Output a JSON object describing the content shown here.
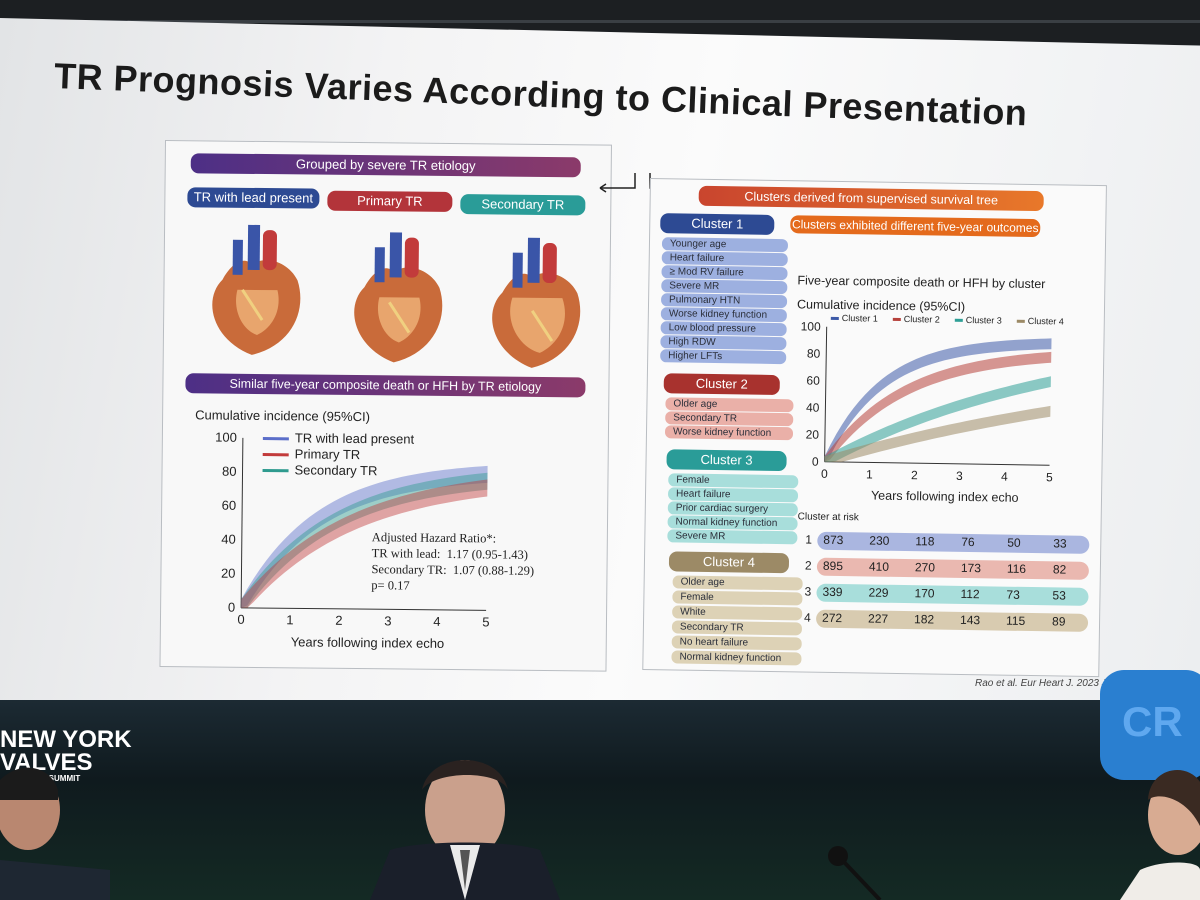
{
  "slide_title": "TR Prognosis Varies According to Clinical Presentation",
  "left_panel": {
    "grouped_header": "Grouped by severe TR etiology",
    "groups": [
      "TR with lead present",
      "Primary TR",
      "Secondary TR"
    ],
    "similar_header": "Similar five-year composite death or HFH by TR etiology",
    "chart": {
      "ylabel": "Cumulative incidence (95%CI)",
      "xlabel": "Years following index echo",
      "yticks": [
        "0",
        "20",
        "40",
        "60",
        "80",
        "100"
      ],
      "xticks": [
        "0",
        "1",
        "2",
        "3",
        "4",
        "5"
      ],
      "legend": [
        "TR with lead present",
        "Primary TR",
        "Secondary TR"
      ],
      "hr_title": "Adjusted Hazard Ratio*:",
      "hr_lines": [
        {
          "label": "TR with lead:",
          "value": "1.17 (0.95-1.43)"
        },
        {
          "label": "Secondary TR:",
          "value": "1.07 (0.88-1.29)"
        }
      ],
      "p_value": "p= 0.17"
    }
  },
  "right_panel": {
    "clusters_header": "Clusters derived from supervised survival tree",
    "clusters_subheader": "Clusters exhibited different five-year outcomes",
    "clusters": [
      {
        "name": "Cluster 1",
        "traits": [
          "Younger age",
          "Heart failure",
          "≥ Mod RV failure",
          "Severe MR",
          "Pulmonary HTN",
          "Worse kidney function",
          "Low blood pressure",
          "High RDW",
          "Higher LFTs"
        ]
      },
      {
        "name": "Cluster 2",
        "traits": [
          "Older age",
          "Secondary TR",
          "Worse kidney function"
        ]
      },
      {
        "name": "Cluster 3",
        "traits": [
          "Female",
          "Heart failure",
          "Prior cardiac surgery",
          "Normal kidney function",
          "Severe MR"
        ]
      },
      {
        "name": "Cluster 4",
        "traits": [
          "Older age",
          "Female",
          "White",
          "Secondary TR",
          "No heart failure",
          "Normal kidney function"
        ]
      }
    ],
    "chart": {
      "title": "Five-year composite death or HFH by cluster",
      "ylabel": "Cumulative incidence (95%CI)",
      "xlabel": "Years following index echo",
      "yticks": [
        "0",
        "20",
        "40",
        "60",
        "80",
        "100"
      ],
      "xticks": [
        "0",
        "1",
        "2",
        "3",
        "4",
        "5"
      ],
      "legend": [
        "Cluster 1",
        "Cluster 2",
        "Cluster 3",
        "Cluster 4"
      ]
    },
    "risk_table": {
      "title": "Cluster at risk",
      "rows": [
        {
          "id": "1",
          "values": [
            "873",
            "230",
            "118",
            "76",
            "50",
            "33"
          ]
        },
        {
          "id": "2",
          "values": [
            "895",
            "410",
            "270",
            "173",
            "116",
            "82"
          ]
        },
        {
          "id": "3",
          "values": [
            "339",
            "229",
            "170",
            "112",
            "73",
            "53"
          ]
        },
        {
          "id": "4",
          "values": [
            "272",
            "227",
            "182",
            "143",
            "115",
            "89"
          ]
        }
      ]
    }
  },
  "citation": "Rao et al. Eur Heart J. 2023 Jun",
  "event_logo": {
    "line1": "NEW YORK",
    "line2": "VALVES",
    "line3": "ART SUMMIT"
  },
  "corner_logo": "CR",
  "colors": {
    "lead": "#5b6ec9",
    "primary": "#c23b3b",
    "secondary": "#2f9b8f",
    "cluster1": "#3d5aa8",
    "cluster2": "#b6413b",
    "cluster3": "#2e9f96",
    "cluster4": "#9c8a66",
    "orange": "#e46a1c",
    "purple": "#5a3a8c"
  }
}
